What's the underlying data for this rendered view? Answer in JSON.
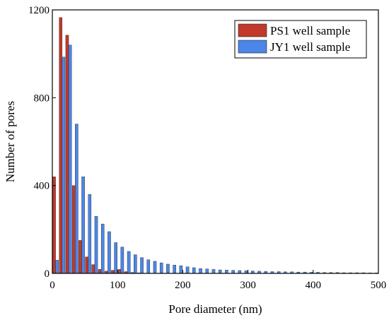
{
  "chart_data": {
    "type": "bar",
    "xlabel": "Pore diameter (nm)",
    "ylabel": "Number of pores",
    "xlim": [
      0,
      500
    ],
    "ylim": [
      0,
      1200
    ],
    "xticks": [
      0,
      100,
      200,
      300,
      400,
      500
    ],
    "yticks": [
      0,
      400,
      800,
      1200
    ],
    "legend_position": "top-right",
    "grid": false,
    "series": [
      {
        "name": "PS1 well sample",
        "color": "#c0392b",
        "x": [
          5,
          15,
          25,
          35,
          45,
          55,
          65,
          75,
          85,
          95,
          105,
          115,
          125,
          135,
          145,
          155,
          165,
          175
        ],
        "values": [
          440,
          1165,
          1085,
          400,
          150,
          75,
          40,
          18,
          10,
          14,
          18,
          8,
          4,
          2,
          1,
          0,
          0,
          0
        ]
      },
      {
        "name": "JY1 well sample",
        "color": "#4b86e8",
        "x": [
          5,
          15,
          25,
          35,
          45,
          55,
          65,
          75,
          85,
          95,
          105,
          115,
          125,
          135,
          145,
          155,
          165,
          175,
          185,
          195,
          205,
          215,
          225,
          235,
          245,
          255,
          265,
          275,
          285,
          295,
          305,
          315,
          325,
          335,
          345,
          355,
          365,
          375,
          385,
          395,
          405,
          415,
          425,
          435,
          445,
          455,
          465,
          475,
          485,
          495
        ],
        "values": [
          60,
          985,
          1040,
          680,
          440,
          360,
          260,
          225,
          190,
          140,
          120,
          100,
          85,
          72,
          62,
          55,
          48,
          42,
          38,
          35,
          30,
          26,
          22,
          20,
          18,
          16,
          15,
          14,
          13,
          12,
          11,
          10,
          9,
          8,
          8,
          7,
          7,
          6,
          6,
          5,
          5,
          4,
          4,
          4,
          3,
          3,
          3,
          3,
          2,
          2
        ]
      }
    ]
  }
}
